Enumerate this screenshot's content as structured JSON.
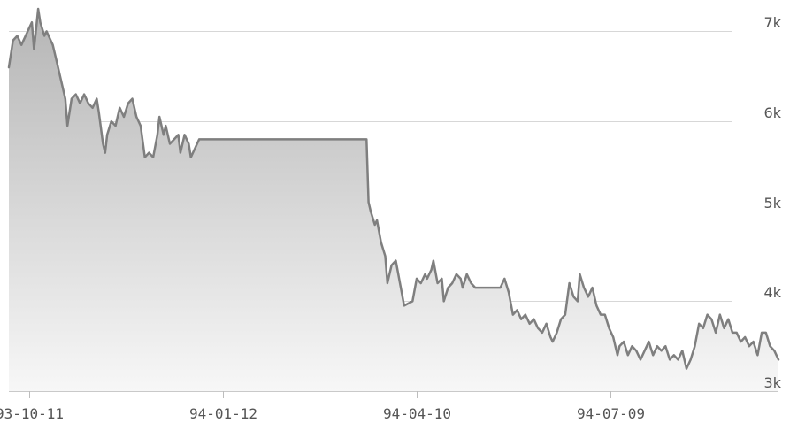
{
  "chart_data": {
    "type": "area",
    "x_tick_labels": [
      "93-10-11",
      "94-01-12",
      "94-04-10",
      "94-07-09"
    ],
    "y_tick_labels": [
      "3k",
      "4k",
      "5k",
      "6k",
      "7k"
    ],
    "y_tick_values": [
      3000,
      4000,
      5000,
      6000,
      7000
    ],
    "ylim": [
      3000,
      7250
    ],
    "grid": true,
    "colors": {
      "line": "#7f7f7f",
      "fill_top": "#b5b5b5",
      "fill_bottom": "#f7f7f7",
      "grid": "#d7d7d7"
    },
    "points": [
      [
        "1993-09-20",
        6600
      ],
      [
        "1993-09-22",
        6900
      ],
      [
        "1993-09-24",
        6950
      ],
      [
        "1993-09-26",
        6850
      ],
      [
        "1993-09-28",
        6950
      ],
      [
        "1993-09-30",
        7050
      ],
      [
        "1993-10-01",
        7100
      ],
      [
        "1993-10-02",
        6800
      ],
      [
        "1993-10-04",
        7250
      ],
      [
        "1993-10-05",
        7100
      ],
      [
        "1993-10-07",
        6950
      ],
      [
        "1993-10-08",
        7000
      ],
      [
        "1993-10-10",
        6900
      ],
      [
        "1993-10-11",
        6850
      ],
      [
        "1993-10-13",
        6650
      ],
      [
        "1993-10-15",
        6450
      ],
      [
        "1993-10-17",
        6250
      ],
      [
        "1993-10-18",
        5950
      ],
      [
        "1993-10-20",
        6250
      ],
      [
        "1993-10-22",
        6300
      ],
      [
        "1993-10-24",
        6200
      ],
      [
        "1993-10-26",
        6300
      ],
      [
        "1993-10-28",
        6200
      ],
      [
        "1993-10-30",
        6150
      ],
      [
        "1993-11-01",
        6250
      ],
      [
        "1993-11-02",
        6100
      ],
      [
        "1993-11-04",
        5750
      ],
      [
        "1993-11-05",
        5650
      ],
      [
        "1993-11-06",
        5850
      ],
      [
        "1993-11-08",
        6000
      ],
      [
        "1993-11-10",
        5950
      ],
      [
        "1993-11-11",
        6050
      ],
      [
        "1993-11-12",
        6150
      ],
      [
        "1993-11-14",
        6050
      ],
      [
        "1993-11-16",
        6200
      ],
      [
        "1993-11-18",
        6250
      ],
      [
        "1993-11-20",
        6050
      ],
      [
        "1993-11-22",
        5950
      ],
      [
        "1993-11-24",
        5600
      ],
      [
        "1993-11-26",
        5650
      ],
      [
        "1993-11-28",
        5600
      ],
      [
        "1993-11-30",
        5850
      ],
      [
        "1993-12-01",
        6050
      ],
      [
        "1993-12-03",
        5850
      ],
      [
        "1993-12-04",
        5950
      ],
      [
        "1993-12-06",
        5750
      ],
      [
        "1993-12-08",
        5800
      ],
      [
        "1993-12-10",
        5850
      ],
      [
        "1993-12-11",
        5650
      ],
      [
        "1993-12-13",
        5850
      ],
      [
        "1993-12-15",
        5750
      ],
      [
        "1993-12-16",
        5600
      ],
      [
        "1993-12-18",
        5700
      ],
      [
        "1993-12-20",
        5800
      ],
      [
        "1994-03-10",
        5800
      ],
      [
        "1994-03-11",
        5100
      ],
      [
        "1994-03-12",
        5000
      ],
      [
        "1994-03-14",
        4850
      ],
      [
        "1994-03-15",
        4900
      ],
      [
        "1994-03-17",
        4650
      ],
      [
        "1994-03-19",
        4500
      ],
      [
        "1994-03-20",
        4200
      ],
      [
        "1994-03-22",
        4400
      ],
      [
        "1994-03-24",
        4450
      ],
      [
        "1994-03-26",
        4200
      ],
      [
        "1994-03-28",
        3950
      ],
      [
        "1994-04-01",
        4000
      ],
      [
        "1994-04-03",
        4250
      ],
      [
        "1994-04-05",
        4200
      ],
      [
        "1994-04-07",
        4300
      ],
      [
        "1994-04-08",
        4250
      ],
      [
        "1994-04-10",
        4350
      ],
      [
        "1994-04-11",
        4450
      ],
      [
        "1994-04-13",
        4200
      ],
      [
        "1994-04-15",
        4250
      ],
      [
        "1994-04-16",
        4000
      ],
      [
        "1994-04-18",
        4150
      ],
      [
        "1994-04-20",
        4200
      ],
      [
        "1994-04-22",
        4300
      ],
      [
        "1994-04-24",
        4250
      ],
      [
        "1994-04-25",
        4150
      ],
      [
        "1994-04-27",
        4300
      ],
      [
        "1994-04-29",
        4200
      ],
      [
        "1994-05-01",
        4150
      ],
      [
        "1994-05-13",
        4150
      ],
      [
        "1994-05-15",
        4250
      ],
      [
        "1994-05-17",
        4100
      ],
      [
        "1994-05-19",
        3850
      ],
      [
        "1994-05-21",
        3900
      ],
      [
        "1994-05-23",
        3800
      ],
      [
        "1994-05-25",
        3850
      ],
      [
        "1994-05-27",
        3750
      ],
      [
        "1994-05-29",
        3800
      ],
      [
        "1994-05-31",
        3700
      ],
      [
        "1994-06-02",
        3650
      ],
      [
        "1994-06-04",
        3750
      ],
      [
        "1994-06-06",
        3600
      ],
      [
        "1994-06-07",
        3550
      ],
      [
        "1994-06-09",
        3650
      ],
      [
        "1994-06-11",
        3800
      ],
      [
        "1994-06-13",
        3850
      ],
      [
        "1994-06-15",
        4200
      ],
      [
        "1994-06-17",
        4050
      ],
      [
        "1994-06-19",
        4000
      ],
      [
        "1994-06-20",
        4300
      ],
      [
        "1994-06-22",
        4150
      ],
      [
        "1994-06-24",
        4050
      ],
      [
        "1994-06-26",
        4150
      ],
      [
        "1994-06-28",
        3950
      ],
      [
        "1994-06-30",
        3850
      ],
      [
        "1994-07-02",
        3850
      ],
      [
        "1994-07-04",
        3700
      ],
      [
        "1994-07-06",
        3600
      ],
      [
        "1994-07-08",
        3400
      ],
      [
        "1994-07-09",
        3500
      ],
      [
        "1994-07-11",
        3550
      ],
      [
        "1994-07-13",
        3400
      ],
      [
        "1994-07-15",
        3500
      ],
      [
        "1994-07-17",
        3450
      ],
      [
        "1994-07-19",
        3350
      ],
      [
        "1994-07-21",
        3450
      ],
      [
        "1994-07-23",
        3550
      ],
      [
        "1994-07-25",
        3400
      ],
      [
        "1994-07-27",
        3500
      ],
      [
        "1994-07-29",
        3450
      ],
      [
        "1994-07-31",
        3500
      ],
      [
        "1994-08-02",
        3350
      ],
      [
        "1994-08-04",
        3400
      ],
      [
        "1994-08-06",
        3350
      ],
      [
        "1994-08-08",
        3450
      ],
      [
        "1994-08-10",
        3250
      ],
      [
        "1994-08-12",
        3350
      ],
      [
        "1994-08-14",
        3500
      ],
      [
        "1994-08-16",
        3750
      ],
      [
        "1994-08-18",
        3700
      ],
      [
        "1994-08-20",
        3850
      ],
      [
        "1994-08-22",
        3800
      ],
      [
        "1994-08-24",
        3650
      ],
      [
        "1994-08-26",
        3850
      ],
      [
        "1994-08-28",
        3700
      ],
      [
        "1994-08-30",
        3800
      ],
      [
        "1994-09-01",
        3650
      ],
      [
        "1994-09-03",
        3650
      ],
      [
        "1994-09-05",
        3550
      ],
      [
        "1994-09-07",
        3600
      ],
      [
        "1994-09-09",
        3500
      ],
      [
        "1994-09-11",
        3550
      ],
      [
        "1994-09-13",
        3400
      ],
      [
        "1994-09-15",
        3650
      ],
      [
        "1994-09-17",
        3650
      ],
      [
        "1994-09-19",
        3500
      ],
      [
        "1994-09-21",
        3450
      ],
      [
        "1994-09-23",
        3350
      ]
    ]
  }
}
